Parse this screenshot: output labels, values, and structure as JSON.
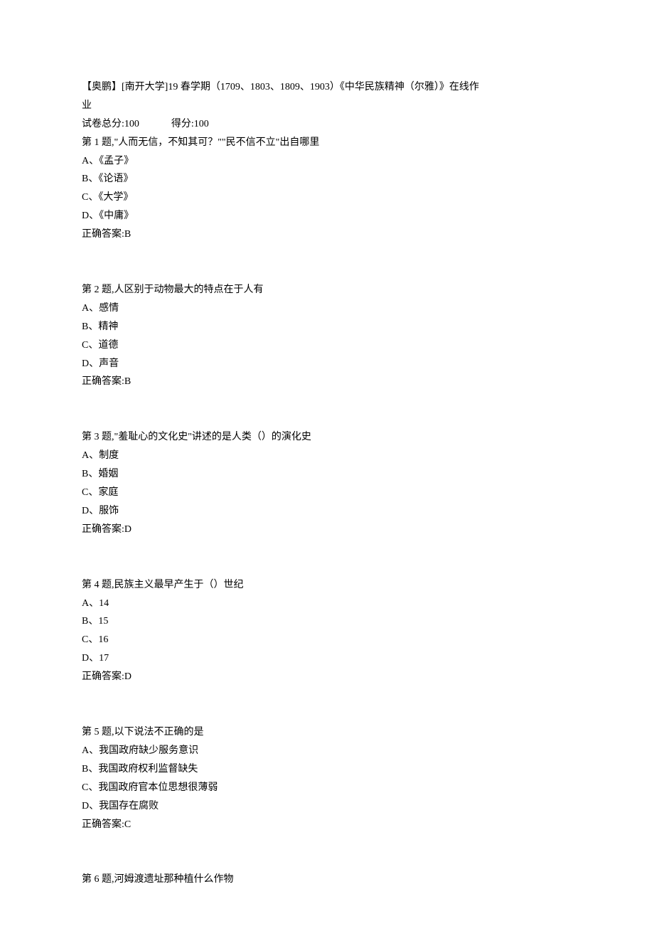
{
  "header": {
    "line1": "【奥鹏】[南开大学]19 春学期（1709、1803、1809、1903）《中华民族精神（尔雅）》在线作",
    "line2": "业"
  },
  "score": {
    "total": "试卷总分:100",
    "got": "得分:100"
  },
  "questions": [
    {
      "q": "第 1 题,\"人而无信，不知其可？\"\"民不信不立\"出自哪里",
      "options": [
        "A、《孟子》",
        "B、《论语》",
        "C、《大学》",
        "D、《中庸》"
      ],
      "answer": "正确答案:B"
    },
    {
      "q": "第 2 题,人区别于动物最大的特点在于人有",
      "options": [
        "A、感情",
        "B、精神",
        "C、道德",
        "D、声音"
      ],
      "answer": "正确答案:B"
    },
    {
      "q": "第 3 题,\"羞耻心的文化史\"讲述的是人类（）的演化史",
      "options": [
        "A、制度",
        "B、婚姻",
        "C、家庭",
        "D、服饰"
      ],
      "answer": "正确答案:D"
    },
    {
      "q": "第 4 题,民族主义最早产生于（）世纪",
      "options": [
        "A、14",
        "B、15",
        "C、16",
        "D、17"
      ],
      "answer": "正确答案:D"
    },
    {
      "q": "第 5 题,以下说法不正确的是",
      "options": [
        "A、我国政府缺少服务意识",
        "B、我国政府权利监督缺失",
        "C、我国政府官本位思想很薄弱",
        "D、我国存在腐败"
      ],
      "answer": "正确答案:C"
    },
    {
      "q": "第 6 题,河姆渡遗址那种植什么作物",
      "options": [],
      "answer": ""
    }
  ]
}
